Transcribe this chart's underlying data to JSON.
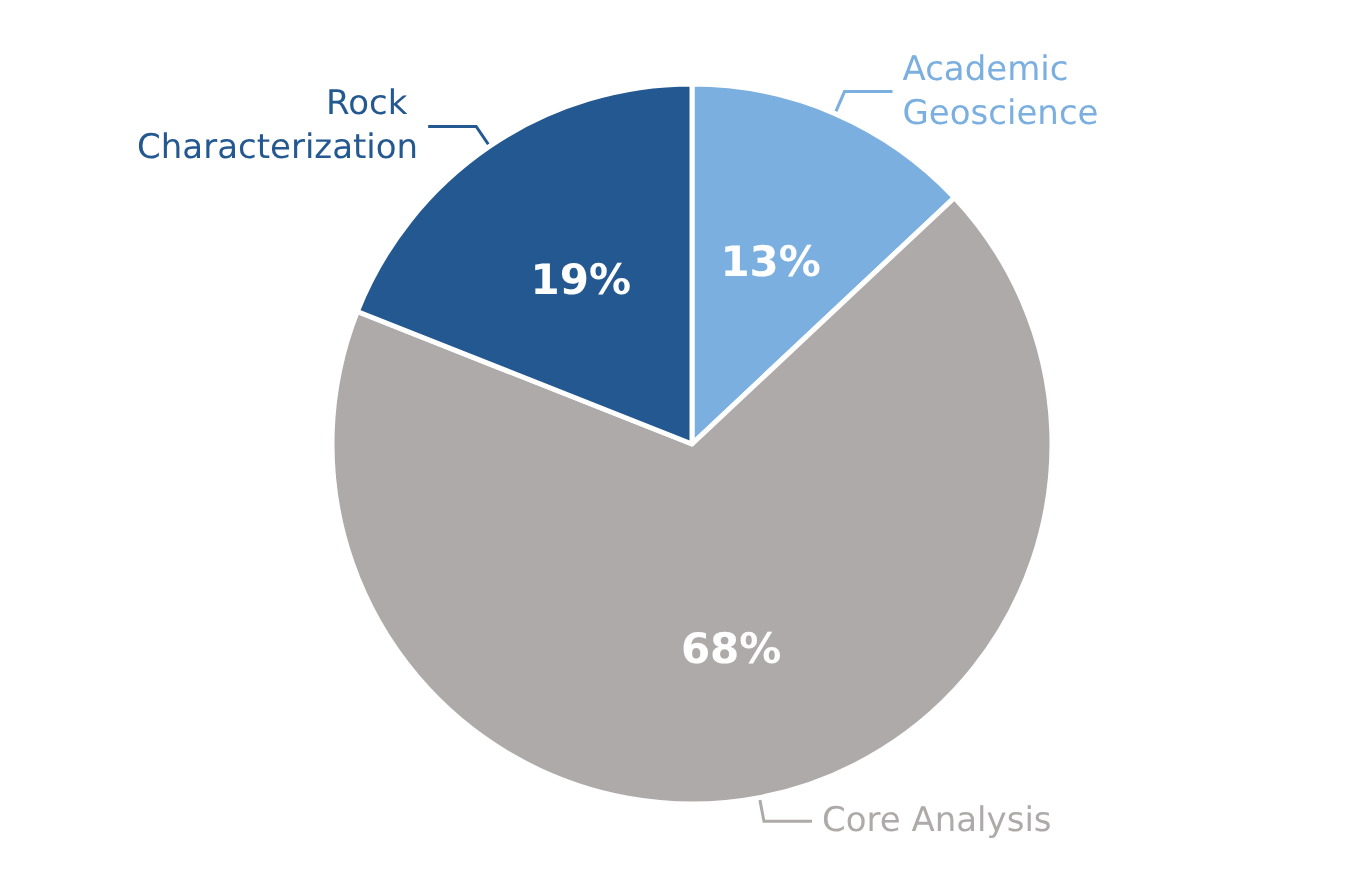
{
  "chart_data": {
    "type": "pie",
    "categories": [
      "Academic Geoscience",
      "Core Analysis",
      "Rock Characterization"
    ],
    "values": [
      13,
      68,
      19
    ],
    "colors": [
      "#7aafe0",
      "#aeaaa9",
      "#245891"
    ],
    "value_labels": [
      "13%",
      "68%",
      "19%"
    ]
  }
}
